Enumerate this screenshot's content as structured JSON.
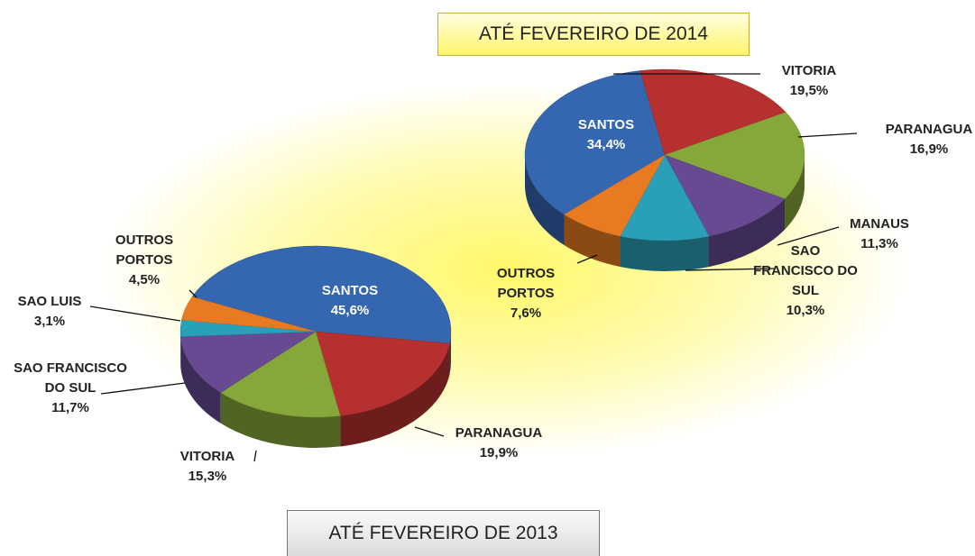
{
  "chart_data": [
    {
      "type": "pie",
      "title": "ATÉ FEVEREIRO DE 2014",
      "categories": [
        "SANTOS",
        "VITORIA",
        "PARANAGUA",
        "MANAUS",
        "SAO FRANCISCO DO SUL",
        "OUTROS PORTOS"
      ],
      "values": [
        34.4,
        19.5,
        16.9,
        11.3,
        10.3,
        7.6
      ],
      "value_labels": [
        "34,4%",
        "19,5%",
        "16,9%",
        "11,3%",
        "10,3%",
        "7,6%"
      ],
      "colors": [
        "#3566b0",
        "#b5302f",
        "#86a83a",
        "#674a92",
        "#2a9fb8",
        "#e87b22"
      ]
    },
    {
      "type": "pie",
      "title": "ATÉ FEVEREIRO DE 2013",
      "categories": [
        "SANTOS",
        "PARANAGUA",
        "VITORIA",
        "SAO FRANCISCO DO SUL",
        "SAO LUIS",
        "OUTROS PORTOS"
      ],
      "values": [
        45.6,
        19.9,
        15.3,
        11.7,
        3.1,
        4.5
      ],
      "value_labels": [
        "45,6%",
        "19,9%",
        "15,3%",
        "11,7%",
        "3,1%",
        "4,5%"
      ],
      "colors": [
        "#3566b0",
        "#b5302f",
        "#86a83a",
        "#674a92",
        "#2a9fb8",
        "#e87b22"
      ]
    }
  ]
}
